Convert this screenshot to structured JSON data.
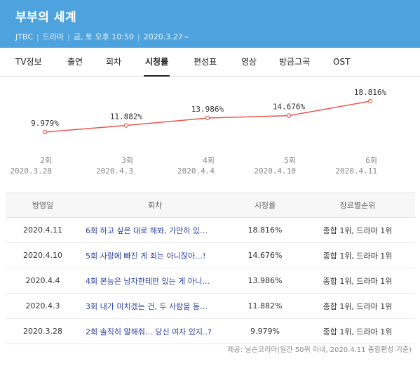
{
  "header": {
    "title": "부부의 세계",
    "channel": "JTBC",
    "genre": "드라마",
    "schedule": "금, 토 오후 10:50",
    "start_date": "2020.3.27~",
    "color": "#4ea3df"
  },
  "tabs": [
    {
      "label": "TV정보",
      "active": false
    },
    {
      "label": "출연",
      "active": false
    },
    {
      "label": "회차",
      "active": false
    },
    {
      "label": "시청률",
      "active": true
    },
    {
      "label": "편성표",
      "active": false
    },
    {
      "label": "영상",
      "active": false
    },
    {
      "label": "방금그곡",
      "active": false
    },
    {
      "label": "OST",
      "active": false
    }
  ],
  "chart_data": {
    "type": "line",
    "categories": [
      "2회",
      "3회",
      "4회",
      "5회",
      "6회"
    ],
    "dates": [
      "2020.3.28",
      "2020.4.3",
      "2020.4.4",
      "2020.4.10",
      "2020.4.11"
    ],
    "values": [
      9.979,
      11.882,
      13.986,
      14.676,
      18.816
    ],
    "value_labels": [
      "9.979%",
      "11.882%",
      "13.986%",
      "14.676%",
      "18.816%"
    ],
    "line_color": "#e8574f",
    "grid": false
  },
  "table": {
    "headers": [
      "방영일",
      "회차",
      "시청률",
      "장르별순위"
    ],
    "rows": [
      {
        "date": "2020.4.11",
        "episode": "6회 하고 싶은 대로 해봐, 가만히 있…",
        "rating": "18.816%",
        "rank": "종합 1위, 드라마 1위"
      },
      {
        "date": "2020.4.10",
        "episode": "5회 사랑에 빠진 게 죄는 아니잖아…!",
        "rating": "14.676%",
        "rank": "종합 1위, 드라마 1위"
      },
      {
        "date": "2020.4.4",
        "episode": "4회 본능은 남자한테만 있는 게 아니…",
        "rating": "13.986%",
        "rank": "종합 1위, 드라마 1위"
      },
      {
        "date": "2020.4.3",
        "episode": "3회 내가 미치겠는 건, 두 사람을 동…",
        "rating": "11.882%",
        "rank": "종합 1위, 드라마 1위"
      },
      {
        "date": "2020.3.28",
        "episode": "2회 솔직히 말해줘… 당신 여자 있지..?",
        "rating": "9.979%",
        "rank": "종합 1위, 드라마 1위"
      }
    ]
  },
  "source": "제공: 닐슨코리아(일간 50위 이내, 2020.4.11 종합편성 기준)"
}
